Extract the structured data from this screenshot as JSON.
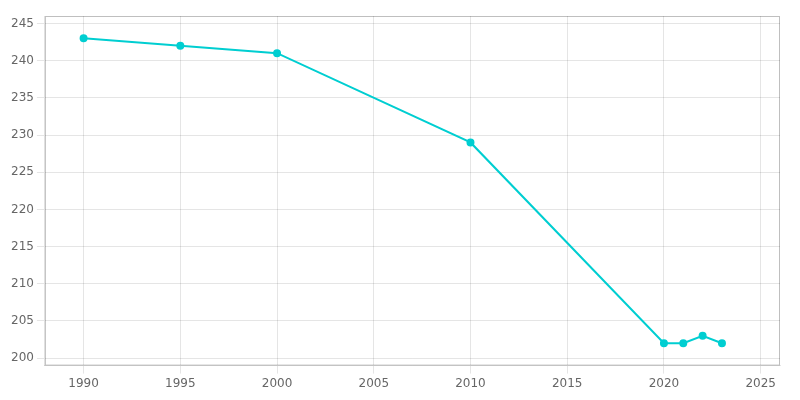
{
  "chart_data": {
    "type": "line",
    "x": [
      1990,
      1995,
      2000,
      2010,
      2020,
      2021,
      2022,
      2023
    ],
    "values": [
      243,
      242,
      241,
      229,
      202,
      202,
      203,
      202
    ],
    "color": "#00CED1",
    "marker": "circle",
    "xlim": [
      1988,
      2026
    ],
    "ylim": [
      199,
      246
    ],
    "xticks": [
      1990,
      1995,
      2000,
      2005,
      2010,
      2015,
      2020,
      2025
    ],
    "yticks": [
      200,
      205,
      210,
      215,
      220,
      225,
      230,
      235,
      240,
      245
    ],
    "grid": true
  }
}
